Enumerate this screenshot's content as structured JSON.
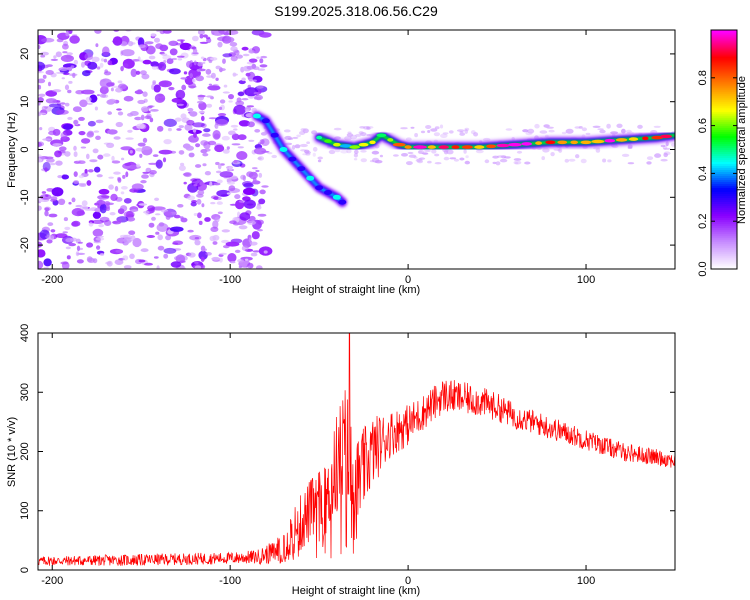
{
  "title": "S199.2025.318.06.56.C29",
  "chart_data": [
    {
      "type": "heatmap",
      "name": "spectrogram",
      "xlabel": "Height of straight line (km)",
      "ylabel": "Frequency (Hz)",
      "xlim": [
        -208,
        150
      ],
      "ylim": [
        -25,
        25
      ],
      "xticks": [
        -200,
        -100,
        0,
        100
      ],
      "yticks": [
        -20,
        -10,
        0,
        10,
        20
      ],
      "colorbar": {
        "label": "Normalized spectral amplitude",
        "range": [
          0,
          1
        ],
        "ticks": [
          "0.0",
          "0.2",
          "0.4",
          "0.6",
          "0.8"
        ],
        "tick_values": [
          0,
          0.2,
          0.4,
          0.6,
          0.8
        ]
      },
      "colormap": [
        "#ffffff",
        "#c78dff",
        "#8a00ff",
        "#0000ff",
        "#00ffff",
        "#00ff00",
        "#ffff00",
        "#ff7f00",
        "#ff0000",
        "#ff00ff"
      ],
      "noise_region": {
        "x": [
          -208,
          -80
        ],
        "y": [
          -25,
          25
        ],
        "amplitude": [
          0.05,
          0.2
        ]
      },
      "descending_branch": [
        [
          -85,
          7
        ],
        [
          -80,
          6
        ],
        [
          -75,
          3
        ],
        [
          -70,
          0
        ],
        [
          -65,
          -2
        ],
        [
          -60,
          -4
        ],
        [
          -55,
          -6
        ],
        [
          -50,
          -8
        ],
        [
          -45,
          -9
        ],
        [
          -40,
          -10
        ],
        [
          -37,
          -11
        ]
      ],
      "signal_track": [
        [
          -50,
          2.5
        ],
        [
          -40,
          1
        ],
        [
          -30,
          0.5
        ],
        [
          -20,
          1.5
        ],
        [
          -15,
          3
        ],
        [
          -5,
          1
        ],
        [
          0,
          0.5
        ],
        [
          20,
          0.5
        ],
        [
          40,
          0.5
        ],
        [
          60,
          1
        ],
        [
          80,
          1.5
        ],
        [
          100,
          1.5
        ],
        [
          120,
          2
        ],
        [
          140,
          2.5
        ],
        [
          150,
          3
        ]
      ]
    },
    {
      "type": "line",
      "name": "snr",
      "xlabel": "Height of straight line (km)",
      "ylabel": "SNR (10 * v/v)",
      "xlim": [
        -208,
        150
      ],
      "ylim": [
        0,
        400
      ],
      "xticks": [
        -200,
        -100,
        0,
        100
      ],
      "yticks": [
        0,
        100,
        200,
        300,
        400
      ],
      "color": "#ff0000",
      "envelope": {
        "x": [
          -208,
          -150,
          -100,
          -85,
          -75,
          -65,
          -55,
          -45,
          -40,
          -35,
          -30,
          -25,
          -20,
          -10,
          0,
          10,
          20,
          30,
          40,
          50,
          60,
          70,
          80,
          90,
          100,
          110,
          120,
          130,
          140,
          150
        ],
        "y": [
          15,
          17,
          20,
          22,
          30,
          60,
          100,
          120,
          180,
          200,
          130,
          170,
          200,
          230,
          245,
          270,
          295,
          290,
          285,
          275,
          260,
          250,
          240,
          230,
          220,
          210,
          200,
          195,
          190,
          185
        ],
        "noise": [
          8,
          10,
          10,
          12,
          20,
          45,
          55,
          60,
          90,
          120,
          90,
          70,
          60,
          40,
          35,
          30,
          30,
          28,
          26,
          24,
          22,
          20,
          20,
          18,
          18,
          16,
          16,
          15,
          14,
          14
        ]
      },
      "peak": {
        "x": -33,
        "y": 400
      }
    }
  ]
}
